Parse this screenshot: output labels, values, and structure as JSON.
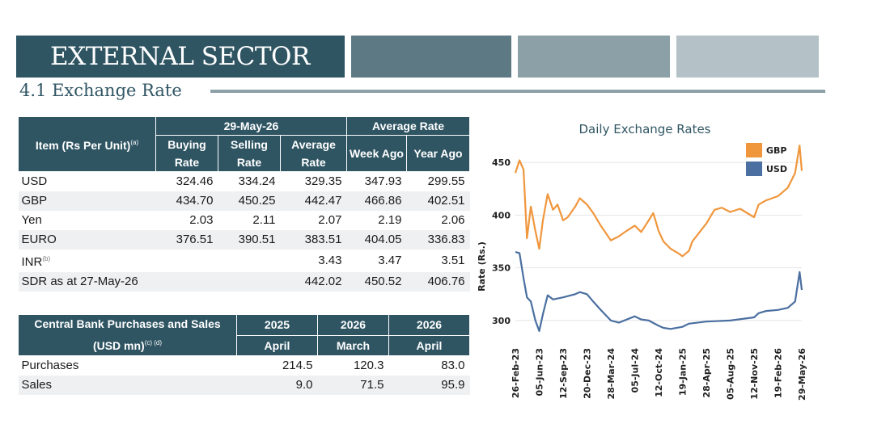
{
  "header": {
    "title": "EXTERNAL SECTOR",
    "subtitle": "4.1 Exchange Rate",
    "colors": {
      "dark": "#2f5563",
      "mid": "#5d7a84",
      "light": "#8ca0a7",
      "lighter": "#b4c2c7"
    }
  },
  "rates_table": {
    "item_header": "Item (Rs Per Unit)",
    "item_note": "(a)",
    "date_header": "29-May-26",
    "avg_header": "Average Rate",
    "columns": [
      "Buying Rate",
      "Selling Rate",
      "Average Rate",
      "Week Ago",
      "Year Ago"
    ],
    "rows": [
      {
        "label": "USD",
        "note": "",
        "buying": "324.46",
        "selling": "334.24",
        "average": "329.35",
        "week": "347.93",
        "year": "299.55"
      },
      {
        "label": "GBP",
        "note": "",
        "buying": "434.70",
        "selling": "450.25",
        "average": "442.47",
        "week": "466.86",
        "year": "402.51"
      },
      {
        "label": "Yen",
        "note": "",
        "buying": "2.03",
        "selling": "2.11",
        "average": "2.07",
        "week": "2.19",
        "year": "2.06"
      },
      {
        "label": "EURO",
        "note": "",
        "buying": "376.51",
        "selling": "390.51",
        "average": "383.51",
        "week": "404.05",
        "year": "336.83"
      },
      {
        "label": "INR",
        "note": "(b)",
        "buying": "",
        "selling": "",
        "average": "3.43",
        "week": "3.47",
        "year": "3.51"
      },
      {
        "label": "SDR as at 27-May-26",
        "note": "",
        "buying": "",
        "selling": "",
        "average": "442.02",
        "week": "450.52",
        "year": "406.76"
      }
    ]
  },
  "cb_table": {
    "header_line1": "Central Bank Purchases and Sales",
    "header_line2": "(USD mn)",
    "header_note": "(c) (d)",
    "columns": [
      {
        "year": "2025",
        "month": "April"
      },
      {
        "year": "2026",
        "month": "March"
      },
      {
        "year": "2026",
        "month": "April"
      }
    ],
    "rows": [
      {
        "label": "Purchases",
        "values": [
          "214.5",
          "120.3",
          "83.0"
        ]
      },
      {
        "label": "Sales",
        "values": [
          "9.0",
          "71.5",
          "95.9"
        ]
      }
    ]
  },
  "chart_data": {
    "type": "line",
    "title": "Daily Exchange Rates",
    "ylabel": "Rate (Rs.)",
    "xlabel": "",
    "ylim": [
      280,
      470
    ],
    "yticks": [
      300,
      350,
      400,
      450
    ],
    "x_tick_labels": [
      "26-Feb-23",
      "05-Jun-23",
      "12-Sep-23",
      "20-Dec-23",
      "28-Mar-24",
      "05-Jul-24",
      "12-Oct-24",
      "19-Jan-25",
      "28-Apr-25",
      "05-Aug-25",
      "12-Nov-25",
      "19-Feb-26",
      "29-May-26"
    ],
    "legend_position": "top-right",
    "grid": true,
    "series": [
      {
        "name": "GBP",
        "color": "#f0963c",
        "points": [
          [
            "26-Feb-23",
            440
          ],
          [
            "15-Mar-23",
            452
          ],
          [
            "01-Apr-23",
            443
          ],
          [
            "15-Apr-23",
            378
          ],
          [
            "01-May-23",
            408
          ],
          [
            "20-May-23",
            385
          ],
          [
            "05-Jun-23",
            368
          ],
          [
            "20-Jun-23",
            395
          ],
          [
            "10-Jul-23",
            420
          ],
          [
            "01-Aug-23",
            405
          ],
          [
            "20-Aug-23",
            410
          ],
          [
            "12-Sep-23",
            395
          ],
          [
            "01-Oct-23",
            398
          ],
          [
            "01-Nov-23",
            408
          ],
          [
            "20-Nov-23",
            416
          ],
          [
            "20-Dec-23",
            410
          ],
          [
            "15-Jan-24",
            402
          ],
          [
            "15-Feb-24",
            390
          ],
          [
            "28-Mar-24",
            376
          ],
          [
            "01-May-24",
            380
          ],
          [
            "01-Jun-24",
            385
          ],
          [
            "05-Jul-24",
            390
          ],
          [
            "01-Aug-24",
            384
          ],
          [
            "01-Sep-24",
            395
          ],
          [
            "20-Sep-24",
            402
          ],
          [
            "12-Oct-24",
            385
          ],
          [
            "01-Nov-24",
            375
          ],
          [
            "01-Dec-24",
            368
          ],
          [
            "01-Jan-25",
            364
          ],
          [
            "19-Jan-25",
            361
          ],
          [
            "15-Feb-25",
            366
          ],
          [
            "01-Mar-25",
            375
          ],
          [
            "28-Apr-25",
            392
          ],
          [
            "01-Jun-25",
            405
          ],
          [
            "01-Jul-25",
            407
          ],
          [
            "05-Aug-25",
            403
          ],
          [
            "15-Sep-25",
            406
          ],
          [
            "12-Nov-25",
            398
          ],
          [
            "01-Dec-25",
            410
          ],
          [
            "01-Jan-26",
            414
          ],
          [
            "19-Feb-26",
            418
          ],
          [
            "01-Apr-26",
            426
          ],
          [
            "01-May-26",
            440
          ],
          [
            "20-May-26",
            466
          ],
          [
            "29-May-26",
            442
          ]
        ]
      },
      {
        "name": "USD",
        "color": "#4a6fa0",
        "points": [
          [
            "26-Feb-23",
            365
          ],
          [
            "15-Mar-23",
            364
          ],
          [
            "01-Apr-23",
            340
          ],
          [
            "15-Apr-23",
            322
          ],
          [
            "01-May-23",
            318
          ],
          [
            "20-May-23",
            300
          ],
          [
            "05-Jun-23",
            290
          ],
          [
            "20-Jun-23",
            306
          ],
          [
            "10-Jul-23",
            324
          ],
          [
            "01-Aug-23",
            320
          ],
          [
            "12-Sep-23",
            322
          ],
          [
            "01-Nov-23",
            325
          ],
          [
            "20-Nov-23",
            327
          ],
          [
            "20-Dec-23",
            325
          ],
          [
            "15-Jan-24",
            318
          ],
          [
            "15-Feb-24",
            310
          ],
          [
            "28-Mar-24",
            300
          ],
          [
            "01-May-24",
            298
          ],
          [
            "05-Jul-24",
            304
          ],
          [
            "01-Aug-24",
            301
          ],
          [
            "01-Sep-24",
            300
          ],
          [
            "12-Oct-24",
            295
          ],
          [
            "01-Nov-24",
            293
          ],
          [
            "01-Dec-24",
            292
          ],
          [
            "19-Jan-25",
            294
          ],
          [
            "15-Feb-25",
            297
          ],
          [
            "28-Apr-25",
            299
          ],
          [
            "05-Aug-25",
            300
          ],
          [
            "12-Nov-25",
            303
          ],
          [
            "01-Dec-25",
            307
          ],
          [
            "01-Jan-26",
            309
          ],
          [
            "19-Feb-26",
            310
          ],
          [
            "01-Apr-26",
            312
          ],
          [
            "01-May-26",
            318
          ],
          [
            "20-May-26",
            346
          ],
          [
            "29-May-26",
            329
          ]
        ]
      }
    ]
  }
}
